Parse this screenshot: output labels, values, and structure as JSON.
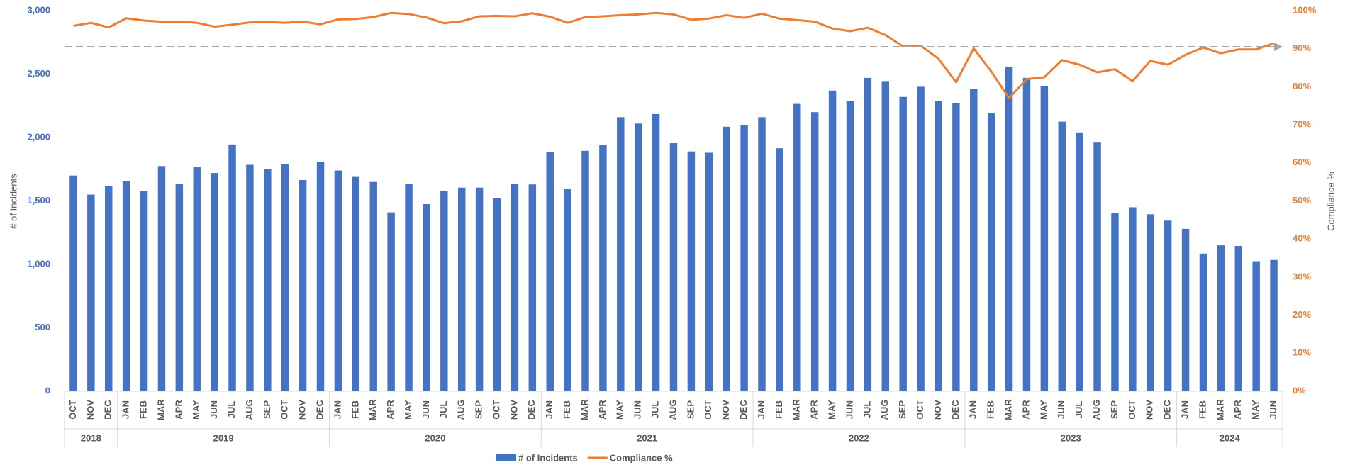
{
  "chart_data": {
    "type": "bar_line",
    "y_axis_label": "# of Incidents",
    "y2_axis_label": "Compliance %",
    "categories": [
      "OCT",
      "NOV",
      "DEC",
      "JAN",
      "FEB",
      "MAR",
      "APR",
      "MAY",
      "JUN",
      "JUL",
      "AUG",
      "SEP",
      "OCT",
      "NOV",
      "DEC",
      "JAN",
      "FEB",
      "MAR",
      "APR",
      "MAY",
      "JUN",
      "JUL",
      "AUG",
      "SEP",
      "OCT",
      "NOV",
      "DEC",
      "JAN",
      "FEB",
      "MAR",
      "APR",
      "MAY",
      "JUN",
      "JUL",
      "AUG",
      "SEP",
      "OCT",
      "NOV",
      "DEC",
      "JAN",
      "FEB",
      "MAR",
      "APR",
      "MAY",
      "JUN",
      "JUL",
      "AUG",
      "SEP",
      "OCT",
      "NOV",
      "DEC",
      "JAN",
      "FEB",
      "MAR",
      "APR",
      "MAY",
      "JUN",
      "JUL",
      "AUG",
      "SEP",
      "OCT",
      "NOV",
      "DEC",
      "JAN",
      "FEB",
      "MAR",
      "APR",
      "MAY",
      "JUN"
    ],
    "years": [
      "2018",
      "2019",
      "2020",
      "2021",
      "2022",
      "2023",
      "2024"
    ],
    "series": [
      {
        "name": "# of Incidents",
        "type": "bar",
        "color": "#4472c4",
        "values": [
          1700,
          1550,
          1615,
          1655,
          1580,
          1775,
          1635,
          1765,
          1720,
          1945,
          1785,
          1750,
          1790,
          1665,
          1810,
          1740,
          1695,
          1650,
          1410,
          1635,
          1475,
          1580,
          1605,
          1605,
          1520,
          1635,
          1630,
          1885,
          1595,
          1895,
          1940,
          2160,
          2110,
          2185,
          1955,
          1890,
          1880,
          2085,
          2100,
          2160,
          1915,
          2265,
          2200,
          2370,
          2285,
          2470,
          2445,
          2320,
          2400,
          2285,
          2270,
          2380,
          2195,
          2555,
          2470,
          2405,
          2125,
          2040,
          1960,
          1405,
          1450,
          1395,
          1345,
          1280,
          1085,
          1150,
          1145,
          1025,
          1035
        ]
      },
      {
        "name": "Compliance %",
        "type": "line",
        "axis": "y2",
        "color": "#ed7d31",
        "values": [
          96,
          96.8,
          95.6,
          98,
          97.4,
          97.1,
          97.1,
          96.8,
          95.8,
          96.3,
          96.9,
          97,
          96.8,
          97.1,
          96.4,
          97.7,
          97.8,
          98.3,
          99.4,
          99.1,
          98.2,
          96.7,
          97.2,
          98.5,
          98.6,
          98.5,
          99.3,
          98.4,
          96.8,
          98.3,
          98.5,
          98.8,
          99,
          99.4,
          99,
          97.6,
          97.9,
          98.8,
          98.1,
          99.2,
          97.9,
          97.5,
          97.1,
          95.3,
          94.6,
          95.5,
          93.6,
          90.6,
          90.8,
          87.4,
          81.2,
          90.1,
          84,
          77,
          82,
          82.5,
          87,
          85.8,
          83.8,
          84.6,
          81.5,
          86.8,
          85.8,
          88.4,
          90.3,
          88.8,
          89.8,
          89.8,
          91.4
        ]
      }
    ],
    "target_line": {
      "value": 90.5,
      "axis": "y2",
      "color": "#a6a6a6"
    },
    "ylim": [
      0,
      3000
    ],
    "yticks": [
      0,
      500,
      {
        "value": 1000,
        "label": "1,000"
      },
      {
        "value": 1500,
        "label": "1,500"
      },
      {
        "value": 2000,
        "label": "2,000"
      },
      {
        "value": 2500,
        "label": "2,500"
      },
      {
        "value": 3000,
        "label": "3,000"
      }
    ],
    "y2lim": [
      0,
      100
    ],
    "y2ticks": [
      {
        "value": 0,
        "label": "0%"
      },
      {
        "value": 10,
        "label": "10%"
      },
      {
        "value": 20,
        "label": "20%"
      },
      {
        "value": 30,
        "label": "30%"
      },
      {
        "value": 40,
        "label": "40%"
      },
      {
        "value": 50,
        "label": "50%"
      },
      {
        "value": 60,
        "label": "60%"
      },
      {
        "value": 70,
        "label": "70%"
      },
      {
        "value": 80,
        "label": "80%"
      },
      {
        "value": 90,
        "label": "90%"
      },
      {
        "value": 100,
        "label": "100%"
      }
    ],
    "grid": false,
    "legend": "bottom"
  }
}
